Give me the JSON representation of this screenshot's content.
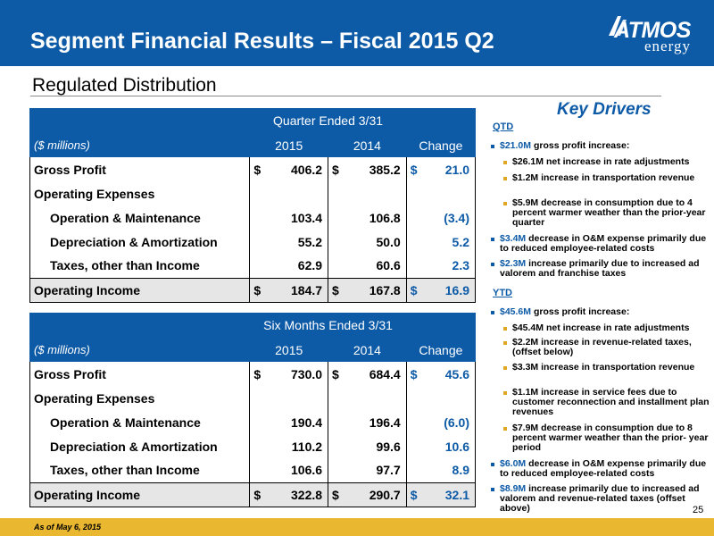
{
  "header": {
    "title": "Segment Financial Results – Fiscal 2015 Q2",
    "logo_top": "ATMOS",
    "logo_bottom": "energy"
  },
  "subtitle": "Regulated Distribution",
  "quarter_table": {
    "title": "Quarter Ended  3/31",
    "units": "($ millions)",
    "col_2015": "2015",
    "col_2014": "2014",
    "col_change": "Change",
    "rows": [
      {
        "label": "Gross Profit",
        "v2015": "406.2",
        "v2014": "385.2",
        "change": "21.0",
        "dollar": "$"
      },
      {
        "label": "Operating Expenses",
        "v2015": "",
        "v2014": "",
        "change": ""
      },
      {
        "label": "Operation & Maintenance",
        "v2015": "103.4",
        "v2014": "106.8",
        "change": "(3.4)"
      },
      {
        "label": "Depreciation & Amortization",
        "v2015": "55.2",
        "v2014": "50.0",
        "change": "5.2"
      },
      {
        "label": "Taxes, other than Income",
        "v2015": "62.9",
        "v2014": "60.6",
        "change": "2.3"
      },
      {
        "label": "Operating Income",
        "v2015": "184.7",
        "v2014": "167.8",
        "change": "16.9",
        "dollar": "$"
      }
    ]
  },
  "six_month_table": {
    "title": "Six Months Ended 3/31",
    "units": "($ millions)",
    "col_2015": "2015",
    "col_2014": "2014",
    "col_change": "Change",
    "rows": [
      {
        "label": "Gross Profit",
        "v2015": "730.0",
        "v2014": "684.4",
        "change": "45.6",
        "dollar": "$"
      },
      {
        "label": "Operating Expenses",
        "v2015": "",
        "v2014": "",
        "change": ""
      },
      {
        "label": "Operation & Maintenance",
        "v2015": "190.4",
        "v2014": "196.4",
        "change": "(6.0)"
      },
      {
        "label": "Depreciation & Amortization",
        "v2015": "110.2",
        "v2014": "99.6",
        "change": "10.6"
      },
      {
        "label": "Taxes, other than Income",
        "v2015": "106.6",
        "v2014": "97.7",
        "change": "8.9"
      },
      {
        "label": "Operating Income",
        "v2015": "322.8",
        "v2014": "290.7",
        "change": "32.1",
        "dollar": "$"
      }
    ]
  },
  "key_drivers": {
    "title": "Key Drivers",
    "qtd_label": "QTD",
    "qtd": [
      {
        "level": 1,
        "hl": "$21.0M",
        "text": " gross profit increase:"
      },
      {
        "level": 2,
        "hl": "",
        "text": "$26.1M net increase in rate adjustments"
      },
      {
        "level": 2,
        "hl": "",
        "text": "$1.2M increase in transportation revenue"
      },
      {
        "level": 2,
        "hl": "",
        "text": "$5.9M decrease in consumption due to 4 percent warmer weather than the prior-year quarter"
      },
      {
        "level": 1,
        "hl": "$3.4M",
        "text": " decrease in O&M expense primarily due to reduced employee-related costs"
      },
      {
        "level": 1,
        "hl": "$2.3M",
        "text": " increase primarily due to increased ad valorem and franchise taxes"
      }
    ],
    "ytd_label": "YTD",
    "ytd": [
      {
        "level": 1,
        "hl": "$45.6M",
        "text": " gross profit increase:"
      },
      {
        "level": 2,
        "hl": "",
        "text": "$45.4M net increase in rate adjustments"
      },
      {
        "level": 2,
        "hl": "",
        "text": "$2.2M increase in revenue-related taxes, (offset below)"
      },
      {
        "level": 2,
        "hl": "",
        "text": "$3.3M increase in transportation revenue"
      },
      {
        "level": 2,
        "hl": "",
        "text": "$1.1M increase in service fees due to customer reconnection and installment plan revenues"
      },
      {
        "level": 2,
        "hl": "",
        "text": "$7.9M decrease in consumption due to 8 percent warmer weather than the prior- year period"
      },
      {
        "level": 1,
        "hl": "$6.0M",
        "text": " decrease in O&M expense primarily due to reduced employee-related costs"
      },
      {
        "level": 1,
        "hl": "$8.9M",
        "text": " increase primarily due to increased ad valorem and revenue-related taxes (offset above)"
      }
    ]
  },
  "footer": {
    "note": "As of May 6, 2015",
    "page": "25"
  },
  "colors": {
    "brand_blue": "#0d5aa7",
    "footer_gold": "#eab730"
  }
}
